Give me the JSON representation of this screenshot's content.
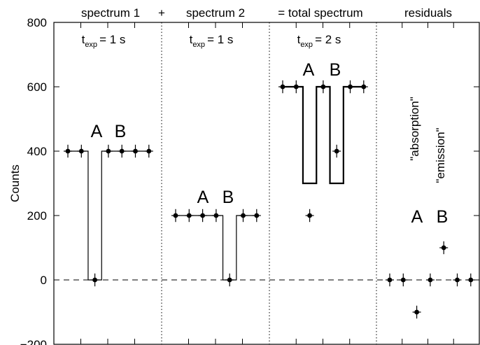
{
  "chart_data": {
    "type": "scatter",
    "ylabel": "Counts",
    "ylim": [
      -200,
      800
    ],
    "yticks": [
      "−200",
      "0",
      "200",
      "400",
      "600",
      "800"
    ],
    "ytick_values": [
      -200,
      0,
      200,
      400,
      600,
      800
    ],
    "x_tick_labels": "none",
    "zero_line": "dashed",
    "headings": {
      "spectrum1": "spectrum 1",
      "plus": "+",
      "spectrum2": "spectrum 2",
      "equals": "= total spectrum",
      "residuals": "residuals"
    },
    "exposures": [
      {
        "t": "t",
        "sub": "exp",
        "value": "= 1 s"
      },
      {
        "t": "t",
        "sub": "exp",
        "value": "= 1 s"
      },
      {
        "t": "t",
        "sub": "exp",
        "value": "= 2 s"
      }
    ],
    "letters": {
      "a": "A",
      "b": "B"
    },
    "residual_labels": {
      "absorption": "\"absorption\"",
      "emission": "\"emission\""
    },
    "panels": [
      {
        "name": "spectrum 1",
        "x": [
          1,
          2,
          3,
          4,
          5,
          6,
          7
        ],
        "y": [
          400,
          400,
          0,
          400,
          400,
          400,
          400
        ],
        "model_levels": [
          400,
          400,
          0,
          400,
          400,
          400,
          400
        ]
      },
      {
        "name": "spectrum 2",
        "x": [
          1,
          2,
          3,
          4,
          5,
          6,
          7
        ],
        "y": [
          200,
          200,
          200,
          200,
          0,
          200,
          200
        ],
        "model_levels": [
          200,
          200,
          200,
          200,
          0,
          200,
          200
        ]
      },
      {
        "name": "total spectrum",
        "x": [
          1,
          2,
          3,
          4,
          5,
          6,
          7
        ],
        "y": [
          600,
          600,
          200,
          600,
          400,
          600,
          600
        ],
        "model_levels": [
          600,
          600,
          300,
          600,
          300,
          600,
          600
        ]
      },
      {
        "name": "residuals",
        "x": [
          1,
          2,
          3,
          4,
          5,
          6,
          7
        ],
        "y": [
          0,
          0,
          -100,
          0,
          100,
          0,
          0
        ]
      }
    ],
    "error_bar": 20
  }
}
